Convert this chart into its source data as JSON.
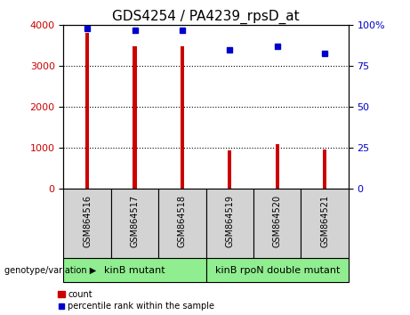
{
  "title": "GDS4254 / PA4239_rpsD_at",
  "samples": [
    "GSM864516",
    "GSM864517",
    "GSM864518",
    "GSM864519",
    "GSM864520",
    "GSM864521"
  ],
  "counts": [
    3820,
    3480,
    3480,
    950,
    1090,
    970
  ],
  "percentiles": [
    98,
    97,
    97,
    85,
    87,
    83
  ],
  "ylim_left": [
    0,
    4000
  ],
  "ylim_right": [
    0,
    100
  ],
  "yticks_left": [
    0,
    1000,
    2000,
    3000,
    4000
  ],
  "yticks_right": [
    0,
    25,
    50,
    75,
    100
  ],
  "yticklabels_right": [
    "0",
    "25",
    "50",
    "75",
    "100%"
  ],
  "bar_color": "#cc0000",
  "dot_color": "#0000cc",
  "group1_label": "kinB mutant",
  "group2_label": "kinB rpoN double mutant",
  "group1_indices": [
    0,
    1,
    2
  ],
  "group2_indices": [
    3,
    4,
    5
  ],
  "genotype_label": "genotype/variation",
  "legend_count": "count",
  "legend_percentile": "percentile rank within the sample",
  "group_box_color": "#90ee90",
  "sample_box_color": "#d3d3d3",
  "grid_color": "#000000",
  "title_fontsize": 11,
  "tick_fontsize": 8,
  "bar_width": 0.08
}
